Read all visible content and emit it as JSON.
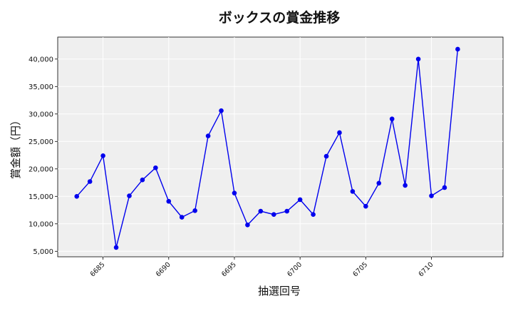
{
  "chart_data": {
    "type": "line",
    "title": "ボックスの賞金推移",
    "xlabel": "抽選回号",
    "ylabel": "賞金額（円）",
    "x": [
      6683,
      6684,
      6685,
      6686,
      6687,
      6688,
      6689,
      6690,
      6691,
      6692,
      6693,
      6694,
      6695,
      6696,
      6697,
      6698,
      6699,
      6700,
      6701,
      6702,
      6703,
      6704,
      6705,
      6706,
      6707,
      6708,
      6709,
      6710,
      6711,
      6712
    ],
    "series": [
      {
        "values": [
          15000,
          17700,
          22400,
          5700,
          15100,
          18000,
          20200,
          14100,
          11200,
          12400,
          26000,
          30600,
          15600,
          9800,
          12300,
          11700,
          12300,
          14400,
          11700,
          22300,
          26600,
          15900,
          13200,
          17400,
          29100,
          17000,
          40000,
          15100,
          16600,
          41800
        ],
        "color": "#0000ee"
      }
    ],
    "xlim": [
      6681.55,
      6715.45
    ],
    "ylim": [
      4000,
      44000
    ],
    "xticks": [
      6685,
      6690,
      6695,
      6700,
      6705,
      6710
    ],
    "xtick_labels": [
      "6685",
      "6690",
      "6695",
      "6700",
      "6705",
      "6710"
    ],
    "yticks": [
      5000,
      10000,
      15000,
      20000,
      25000,
      30000,
      35000,
      40000
    ],
    "ytick_labels": [
      "5,000",
      "10,000",
      "15,000",
      "20,000",
      "25,000",
      "30,000",
      "35,000",
      "40,000"
    ],
    "grid": true,
    "plot_background": "#efefef"
  }
}
